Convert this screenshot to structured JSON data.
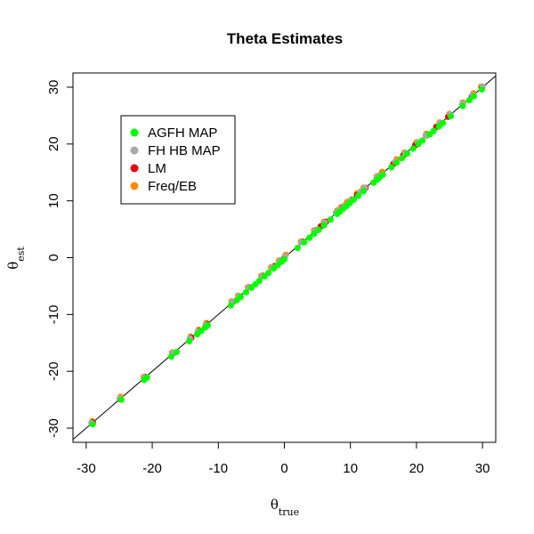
{
  "chart_data": {
    "type": "scatter",
    "title": "Theta Estimates",
    "xlabel": {
      "main": "θ",
      "sub": "true"
    },
    "ylabel": {
      "main": "θ",
      "sub": "est"
    },
    "xlim": [
      -32,
      32
    ],
    "ylim": [
      -32.5,
      32.5
    ],
    "xticks": [
      -30,
      -20,
      -10,
      0,
      10,
      20,
      30
    ],
    "yticks": [
      -30,
      -20,
      -10,
      0,
      10,
      20,
      30
    ],
    "reference_line": {
      "slope": 1,
      "intercept": 0,
      "color": "#000000"
    },
    "legend_position": "top-left",
    "series": [
      {
        "name": "Freq/EB",
        "color": "#FF8C00",
        "offset": 0.3,
        "x": [
          -29.1,
          -24.8,
          -21.3,
          -17.0,
          -14.2,
          -13.0,
          -11.8,
          -8.0,
          -7.0,
          -5.5,
          -3.5,
          -2.0,
          -0.8,
          0.2,
          2.5,
          4.5,
          6.0,
          8.0,
          8.6,
          9.5,
          11.0,
          12.0,
          14.0,
          14.8,
          17.0,
          18.2,
          20.0,
          21.5,
          23.5,
          25.0,
          27.0,
          28.6,
          29.8
        ]
      },
      {
        "name": "LM",
        "color": "#E8000B",
        "offset": 0.0,
        "x": [
          -29.0,
          -24.9,
          -21.0,
          -16.8,
          -14.1,
          -12.9,
          -11.7,
          -7.8,
          -6.8,
          -5.2,
          -3.2,
          -1.5,
          -0.5,
          0.0,
          2.8,
          4.8,
          5.5,
          6.3,
          7.9,
          8.4,
          9.0,
          10.2,
          11.0,
          12.3,
          14.0,
          14.6,
          16.5,
          18.0,
          19.8,
          21.5,
          23.0,
          24.8,
          27.0,
          28.4,
          29.9
        ]
      },
      {
        "name": "FH HB MAP",
        "color": "#A9A9A9",
        "offset": 0.1,
        "x": [
          -29.2,
          -24.9,
          -21.2,
          -16.9,
          -14.3,
          -13.1,
          -11.9,
          -7.9,
          -6.9,
          -5.3,
          -3.4,
          -1.8,
          -0.6,
          0.1,
          2.6,
          4.6,
          6.1,
          7.8,
          8.3,
          9.1,
          10.0,
          11.5,
          12.2,
          14.0,
          14.5,
          16.8,
          18.3,
          20.2,
          21.4,
          23.6,
          25.1,
          27.0,
          28.5,
          30.0
        ]
      },
      {
        "name": "AGFH MAP",
        "color": "#00FF00",
        "offset": -0.3,
        "x": [
          -29.0,
          -24.7,
          -21.2,
          -20.8,
          -17.1,
          -16.3,
          -14.4,
          -13.2,
          -12.6,
          -12.0,
          -11.6,
          -8.1,
          -7.2,
          -6.6,
          -5.8,
          -5.0,
          -4.4,
          -3.8,
          -3.0,
          -2.4,
          -1.6,
          -1.0,
          -0.4,
          0.0,
          2.0,
          3.0,
          3.8,
          4.5,
          5.2,
          6.0,
          7.0,
          8.0,
          8.4,
          8.9,
          9.4,
          9.9,
          10.5,
          11.2,
          12.0,
          13.5,
          14.0,
          14.4,
          14.9,
          16.2,
          17.0,
          17.8,
          18.6,
          19.5,
          20.3,
          20.9,
          22.0,
          22.6,
          23.4,
          24.0,
          25.2,
          27.0,
          28.0,
          28.7,
          29.9
        ]
      }
    ]
  },
  "legend": {
    "items": [
      {
        "label": "AGFH MAP",
        "color": "#00FF00"
      },
      {
        "label": "FH HB MAP",
        "color": "#A9A9A9"
      },
      {
        "label": "LM",
        "color": "#E8000B"
      },
      {
        "label": "Freq/EB",
        "color": "#FF8C00"
      }
    ]
  }
}
